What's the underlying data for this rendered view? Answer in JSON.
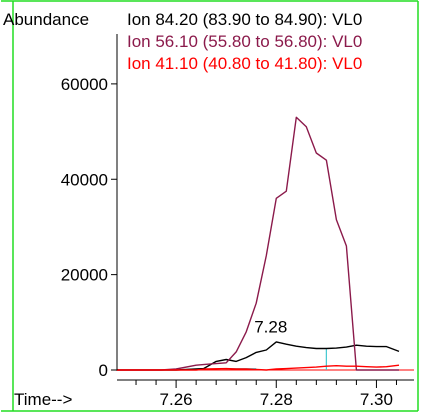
{
  "chart_data": {
    "type": "line",
    "ylabel": "Abundance",
    "xlabel": "Time-->",
    "xlim": [
      7.2482,
      7.3075
    ],
    "ylim": [
      0,
      71300
    ],
    "yticks": [
      0,
      20000,
      40000,
      60000
    ],
    "ytick_labels": [
      "0",
      "20000",
      "40000",
      "60000"
    ],
    "xticks": [
      7.26,
      7.28,
      7.3
    ],
    "xtick_labels": [
      "7.26",
      "7.28",
      "7.30"
    ],
    "x_minor_step": 0.004,
    "series": [
      {
        "name": "Ion  84.20 (83.90 to 84.90): VL0",
        "color": "#000000",
        "x": [
          7.2481,
          7.26,
          7.2655,
          7.268,
          7.27,
          7.272,
          7.274,
          7.276,
          7.278,
          7.28,
          7.282,
          7.284,
          7.286,
          7.288,
          7.29,
          7.292,
          7.294,
          7.296,
          7.298,
          7.3,
          7.302,
          7.3045
        ],
        "y": [
          0,
          0,
          300,
          1800,
          2200,
          1800,
          2600,
          3700,
          4200,
          5900,
          5400,
          5000,
          4700,
          4500,
          4500,
          4600,
          4800,
          5200,
          5000,
          4900,
          4900,
          3900
        ]
      },
      {
        "name": "Ion  56.10 (55.80 to 56.80): VL0",
        "color": "#8b1a4b",
        "x": [
          7.2481,
          7.257,
          7.26,
          7.264,
          7.266,
          7.27,
          7.272,
          7.274,
          7.276,
          7.278,
          7.28,
          7.282,
          7.284,
          7.286,
          7.288,
          7.29,
          7.292,
          7.294,
          7.296,
          7.298,
          7.3,
          7.302,
          7.3045
        ],
        "y": [
          0,
          0,
          200,
          1000,
          1200,
          1500,
          3800,
          8000,
          14000,
          24000,
          36000,
          37500,
          53000,
          51000,
          45500,
          44000,
          31500,
          26000,
          0,
          0,
          0,
          0,
          0
        ]
      },
      {
        "name": "Ion  41.10 (40.80 to 41.80): VL0",
        "color": "#ff0000",
        "x": [
          7.2481,
          7.264,
          7.266,
          7.27,
          7.272,
          7.274,
          7.276,
          7.278,
          7.28,
          7.282,
          7.284,
          7.286,
          7.288,
          7.29,
          7.292,
          7.294,
          7.296,
          7.298,
          7.3,
          7.302,
          7.3045
        ],
        "y": [
          0,
          0,
          200,
          300,
          200,
          200,
          100,
          0,
          200,
          300,
          400,
          500,
          600,
          800,
          900,
          800,
          800,
          700,
          600,
          700,
          1000
        ]
      }
    ],
    "annotations": [
      {
        "text": "7.28",
        "x": 7.2789,
        "y": 7200
      }
    ],
    "baseline_color": "#ff0000",
    "marker_color": "#40c8d0",
    "frame_color": "#22dd22"
  }
}
